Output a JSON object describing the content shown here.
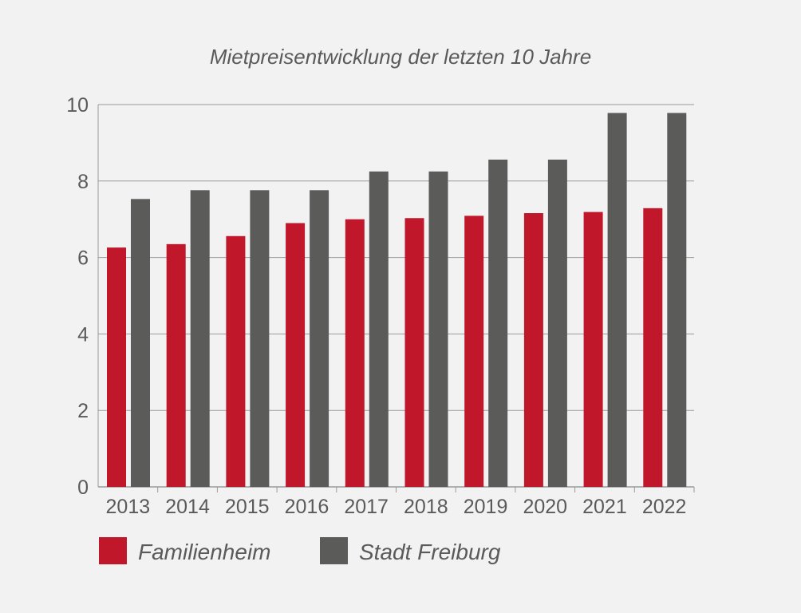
{
  "chart_data": {
    "type": "bar",
    "title": "Mietpreisentwicklung der letzten 10 Jahre",
    "xlabel": "",
    "ylabel": "",
    "categories": [
      "2013",
      "2014",
      "2015",
      "2016",
      "2017",
      "2018",
      "2019",
      "2020",
      "2021",
      "2022"
    ],
    "series": [
      {
        "name": "Familienheim",
        "color": "#c0172b",
        "values": [
          6.26,
          6.35,
          6.56,
          6.9,
          7.0,
          7.03,
          7.09,
          7.16,
          7.19,
          7.29
        ]
      },
      {
        "name": "Stadt Freiburg",
        "color": "#5b5b5a",
        "values": [
          7.53,
          7.76,
          7.76,
          7.76,
          8.25,
          8.25,
          8.56,
          8.56,
          9.78,
          9.78
        ]
      }
    ],
    "ylim": [
      0,
      10
    ],
    "yticks": [
      "0",
      "2",
      "4",
      "6",
      "8",
      "10"
    ],
    "grid": true,
    "legend_position": "bottom-left"
  }
}
